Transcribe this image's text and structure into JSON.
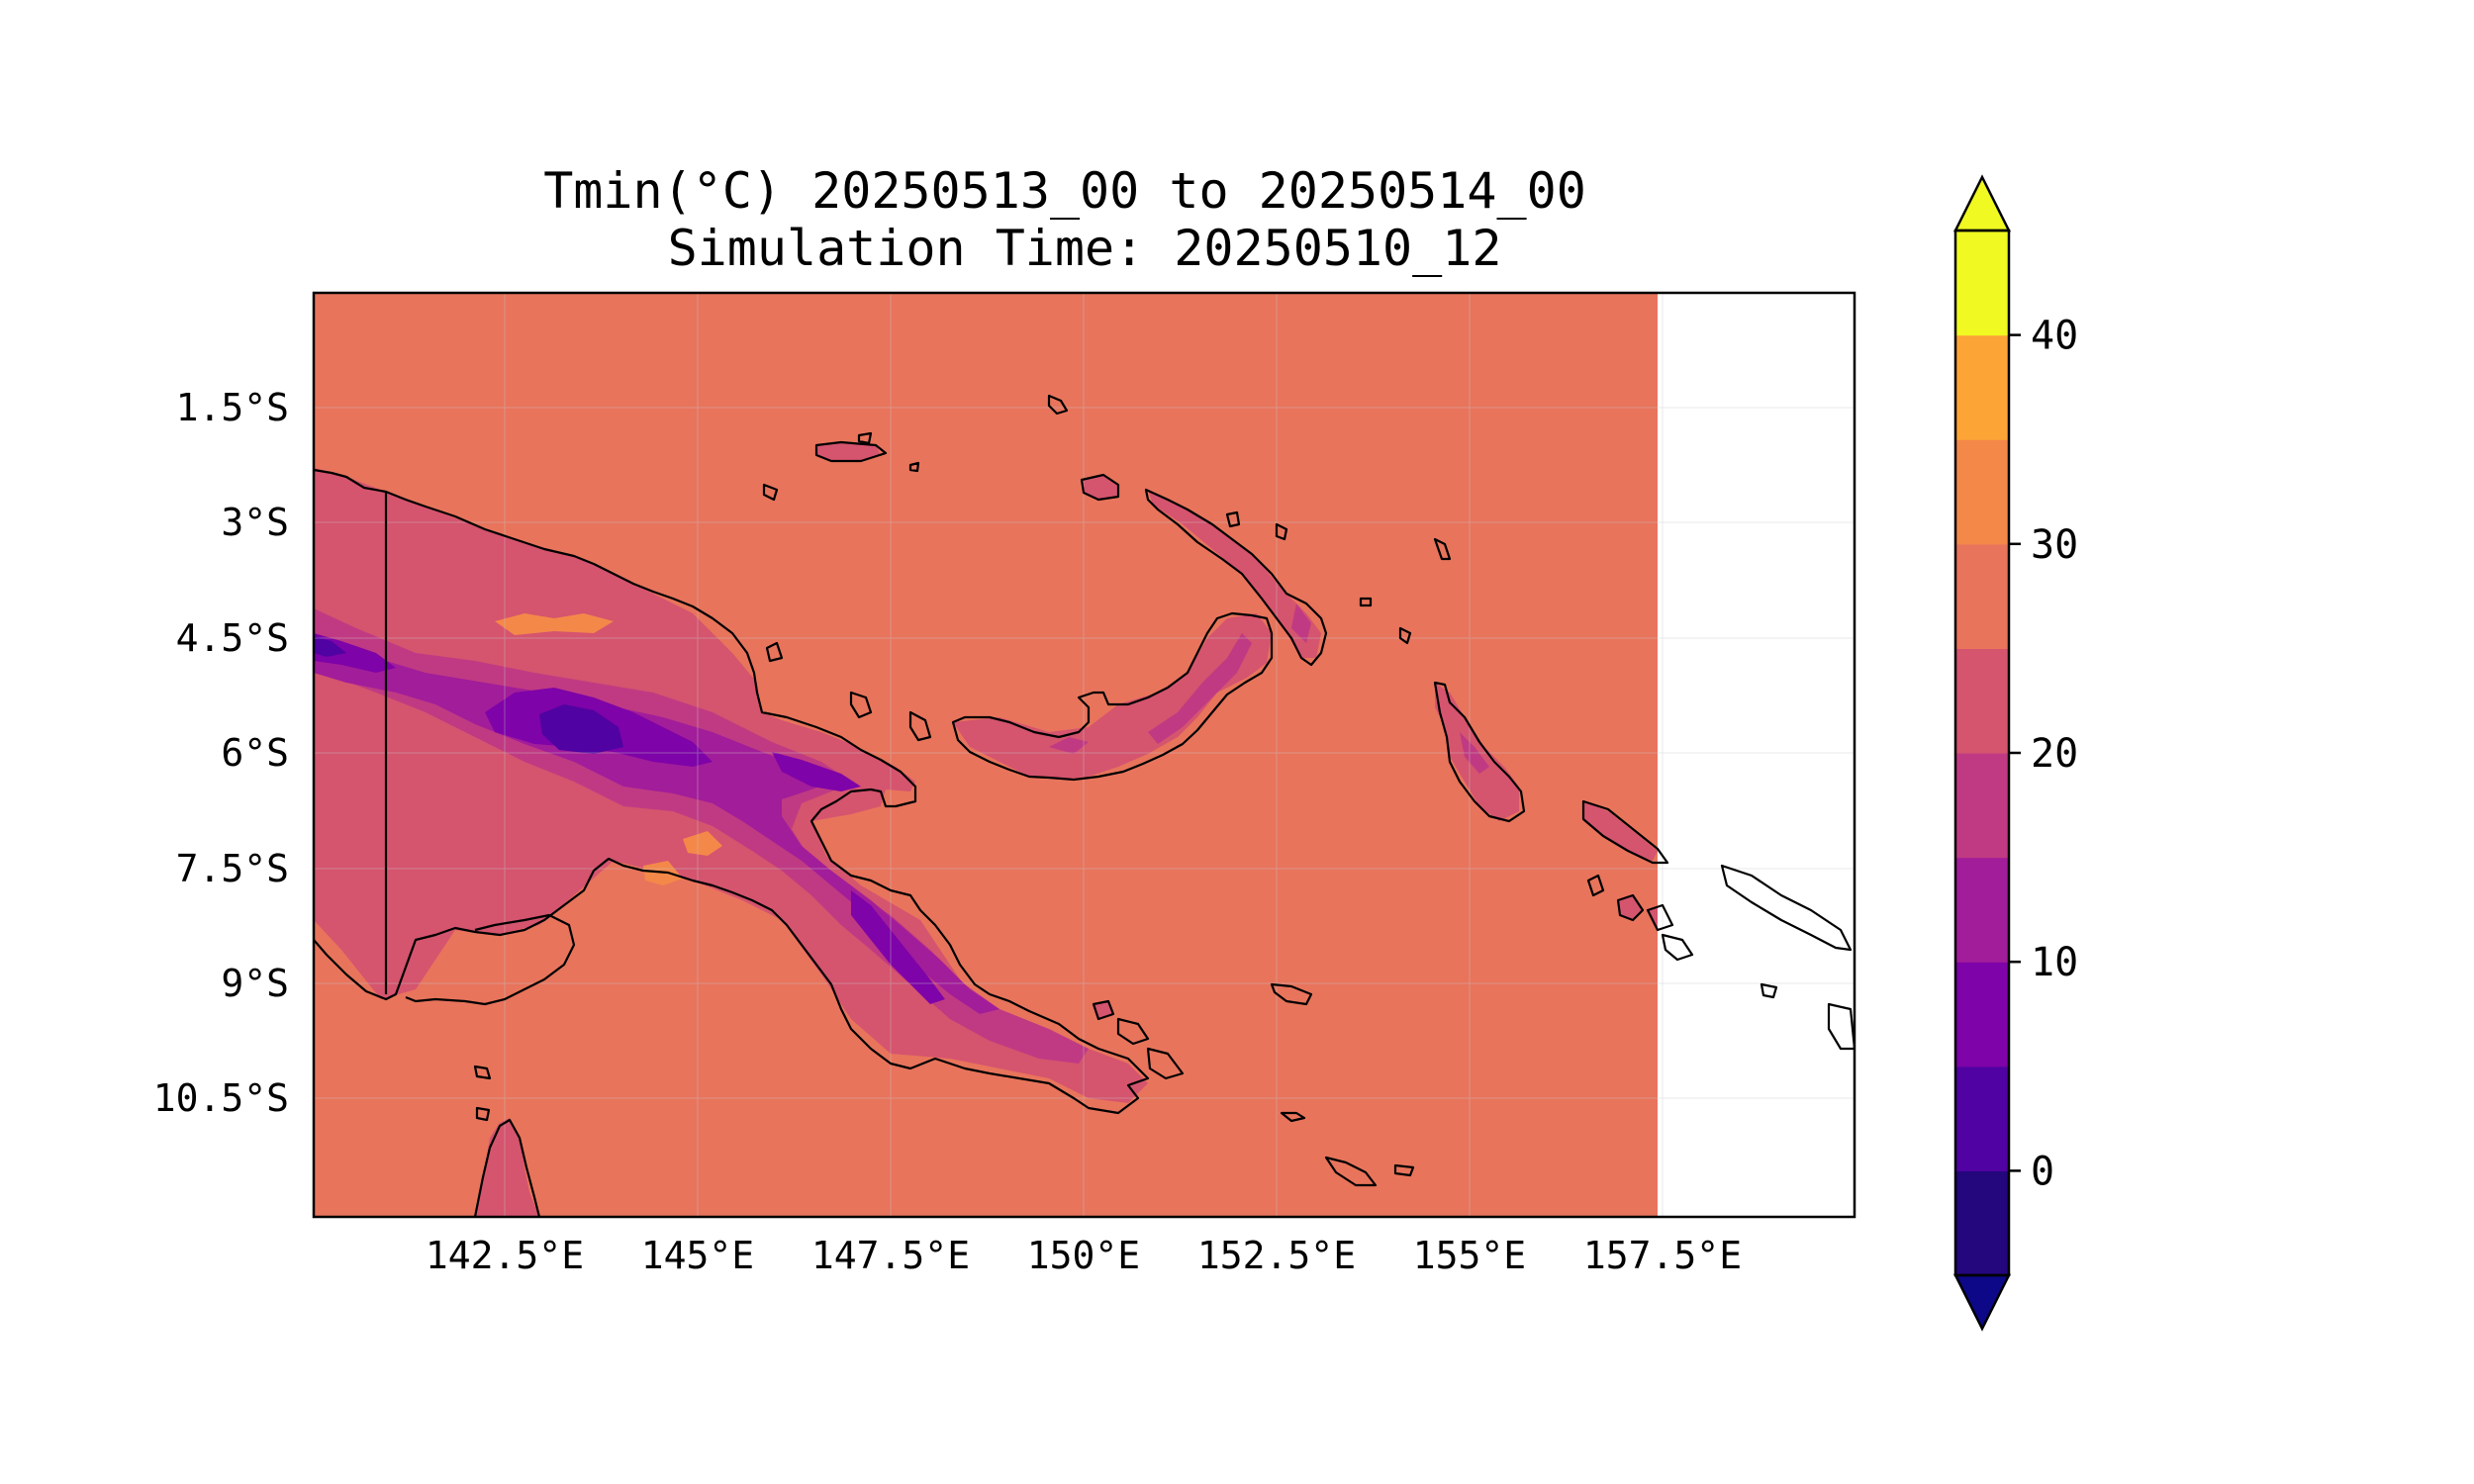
{
  "title": {
    "line1": "Tmin(°C) 20250513_00 to 20250514_00",
    "line2": "Simulation Time: 20250510_12"
  },
  "map": {
    "x_ticks": [
      "142.5°E",
      "145°E",
      "147.5°E",
      "150°E",
      "152.5°E",
      "155°E",
      "157.5°E"
    ],
    "y_ticks": [
      "1.5°S",
      "3°S",
      "4.5°S",
      "6°S",
      "7.5°S",
      "9°S",
      "10.5°S"
    ],
    "background_field_level": "25-30"
  },
  "colorbar": {
    "ticks": [
      "0",
      "10",
      "20",
      "30",
      "40"
    ],
    "levels": [
      -5,
      0,
      5,
      10,
      15,
      20,
      25,
      30,
      35,
      40,
      45
    ],
    "colors": [
      "#24067d",
      "#5002a2",
      "#7e03a8",
      "#a21d9a",
      "#c03a83",
      "#d5546e",
      "#e8745c",
      "#f48849",
      "#fca436",
      "#f0f921"
    ],
    "under_color": "#0d0887",
    "over_color": "#f0f921",
    "extend": "both",
    "cmap": "plasma"
  },
  "colors": {
    "warm": "#e8745c",
    "c20_25": "#d5546e",
    "c15_20": "#c03a83",
    "c10_15": "#a21d9a",
    "c5_10": "#7e03a8",
    "c0_5": "#5002a2",
    "c30_35": "#f48849"
  }
}
